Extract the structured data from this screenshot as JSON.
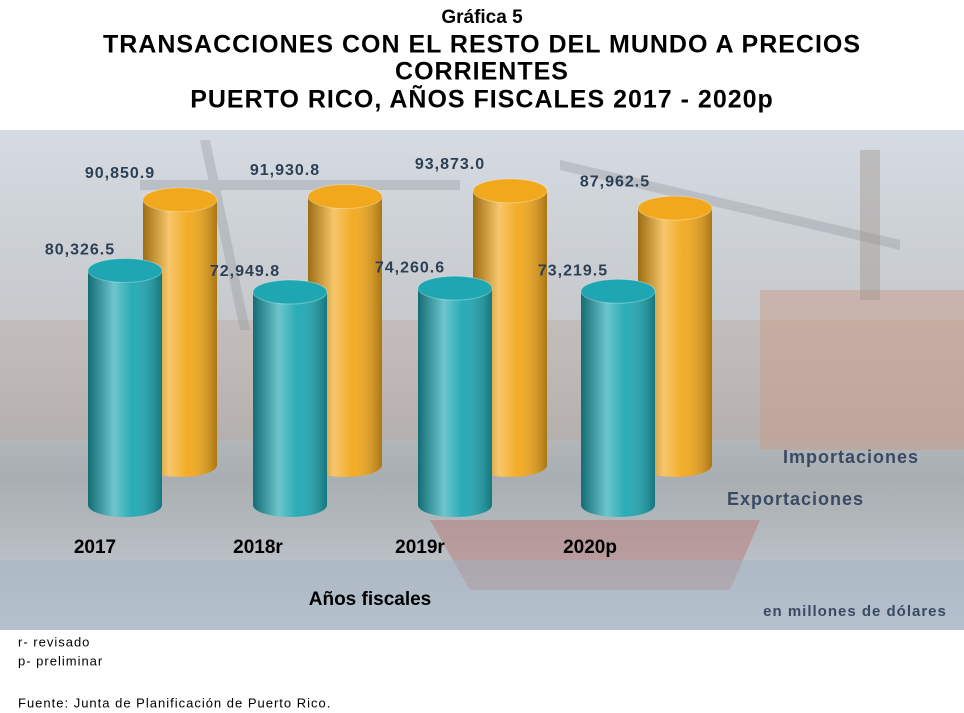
{
  "chart_data": {
    "type": "cylinder-bar",
    "title": "Gráfica 5",
    "subtitle": [
      "TRANSACCIONES CON EL RESTO DEL MUNDO A PRECIOS",
      "CORRIENTES",
      "PUERTO RICO, AÑOS FISCALES 2017 - 2020p"
    ],
    "categories": [
      "2017",
      "2018r",
      "2019r",
      "2020p"
    ],
    "series": [
      {
        "name": "Exportaciones",
        "color": "#1ea7b2",
        "values": [
          80326.5,
          72949.8,
          74260.6,
          73219.5
        ],
        "value_labels": [
          "80,326.5",
          "72,949.8",
          "74,260.6",
          "73,219.5"
        ]
      },
      {
        "name": "Importaciones",
        "color": "#f2a81c",
        "values": [
          90850.9,
          91930.8,
          93873.0,
          87962.5
        ],
        "value_labels": [
          "90,850.9",
          "91,930.8",
          "93,873.0",
          "87,962.5"
        ]
      }
    ],
    "xlabel": "Años fiscales",
    "units_note": "en millones de dólares",
    "footnotes": [
      "r- revisado",
      "p- preliminar"
    ],
    "source": "Fuente: Junta de Planificación de Puerto Rico."
  }
}
